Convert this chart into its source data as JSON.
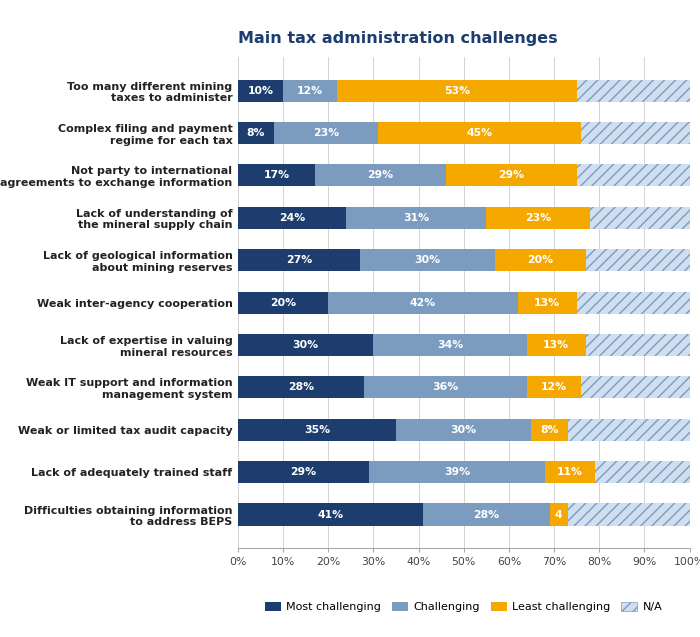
{
  "title": "Main tax administration challenges",
  "categories": [
    "Too many different mining\ntaxes to administer",
    "Complex filing and payment\nregime for each tax",
    "Not party to international\nagreements to exchange information",
    "Lack of understanding of\nthe mineral supply chain",
    "Lack of geological information\nabout mining reserves",
    "Weak inter-agency cooperation",
    "Lack of expertise in valuing\nmineral resources",
    "Weak IT support and information\nmanagement system",
    "Weak or limited tax audit capacity",
    "Lack of adequately trained staff",
    "Difficulties obtaining information\nto address BEPS"
  ],
  "most_challenging": [
    10,
    8,
    17,
    24,
    27,
    20,
    30,
    28,
    35,
    29,
    41
  ],
  "challenging": [
    12,
    23,
    29,
    31,
    30,
    42,
    34,
    36,
    30,
    39,
    28
  ],
  "least_challenging": [
    53,
    45,
    29,
    23,
    20,
    13,
    13,
    12,
    8,
    11,
    4
  ],
  "na": [
    25,
    24,
    25,
    22,
    23,
    25,
    23,
    24,
    27,
    21,
    27
  ],
  "color_most": "#1c3d6e",
  "color_challenging": "#7b9bbf",
  "color_least": "#f5a800",
  "color_na_fill": "#d0dff0",
  "color_na_hatch": "#7b9bbf",
  "legend_labels": [
    "Most challenging",
    "Challenging",
    "Least challenging",
    "N/A"
  ],
  "bar_height": 0.52,
  "label_fontsize": 7.8,
  "category_fontsize": 8.0,
  "title_fontsize": 11.5,
  "tick_fontsize": 7.8,
  "legend_fontsize": 8.0
}
